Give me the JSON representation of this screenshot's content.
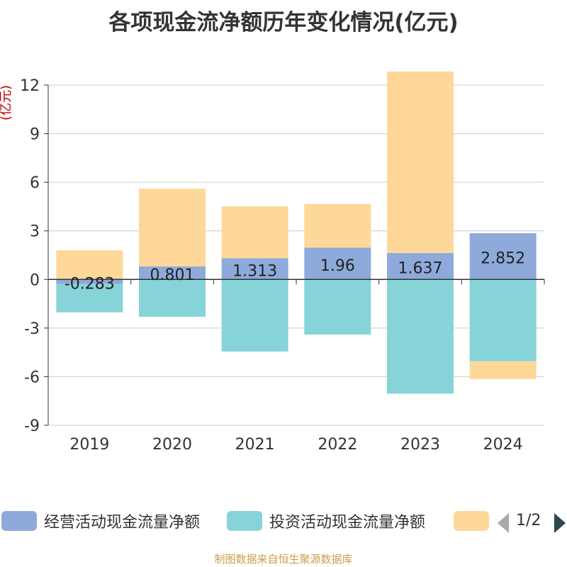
{
  "chart_data": {
    "type": "bar",
    "stacked": true,
    "title": "各项现金流净额历年变化情况(亿元)",
    "ylabel": "(亿元)",
    "xlabel": "",
    "categories": [
      "2019",
      "2020",
      "2021",
      "2022",
      "2023",
      "2024"
    ],
    "ylim": [
      -9,
      12
    ],
    "yticks": [
      12,
      9,
      6,
      3,
      0,
      -3,
      -6,
      -9
    ],
    "series": [
      {
        "name": "经营活动现金流量净额",
        "color": "#8eaadb",
        "values": [
          -0.283,
          0.801,
          1.313,
          1.96,
          1.637,
          2.852
        ],
        "labels": [
          "-0.283",
          "0.801",
          "1.313",
          "1.96",
          "1.637",
          "2.852"
        ]
      },
      {
        "name": "投资活动现金流量净额",
        "color": "#86d4d8",
        "values": [
          -1.75,
          -2.3,
          -4.45,
          -3.4,
          -7.05,
          -5.05
        ]
      },
      {
        "name": "",
        "color": "#fdd898",
        "values": [
          1.8,
          4.8,
          3.2,
          2.7,
          11.2,
          -1.1
        ]
      }
    ]
  },
  "legend": {
    "items": [
      {
        "label": "经营活动现金流量净额",
        "color": "#8eaadb"
      },
      {
        "label": "投资活动现金流量净额",
        "color": "#86d4d8"
      },
      {
        "label": "",
        "color": "#fdd898"
      }
    ],
    "pager": "1/2"
  },
  "source": "制图数据来自恒生聚源数据库"
}
